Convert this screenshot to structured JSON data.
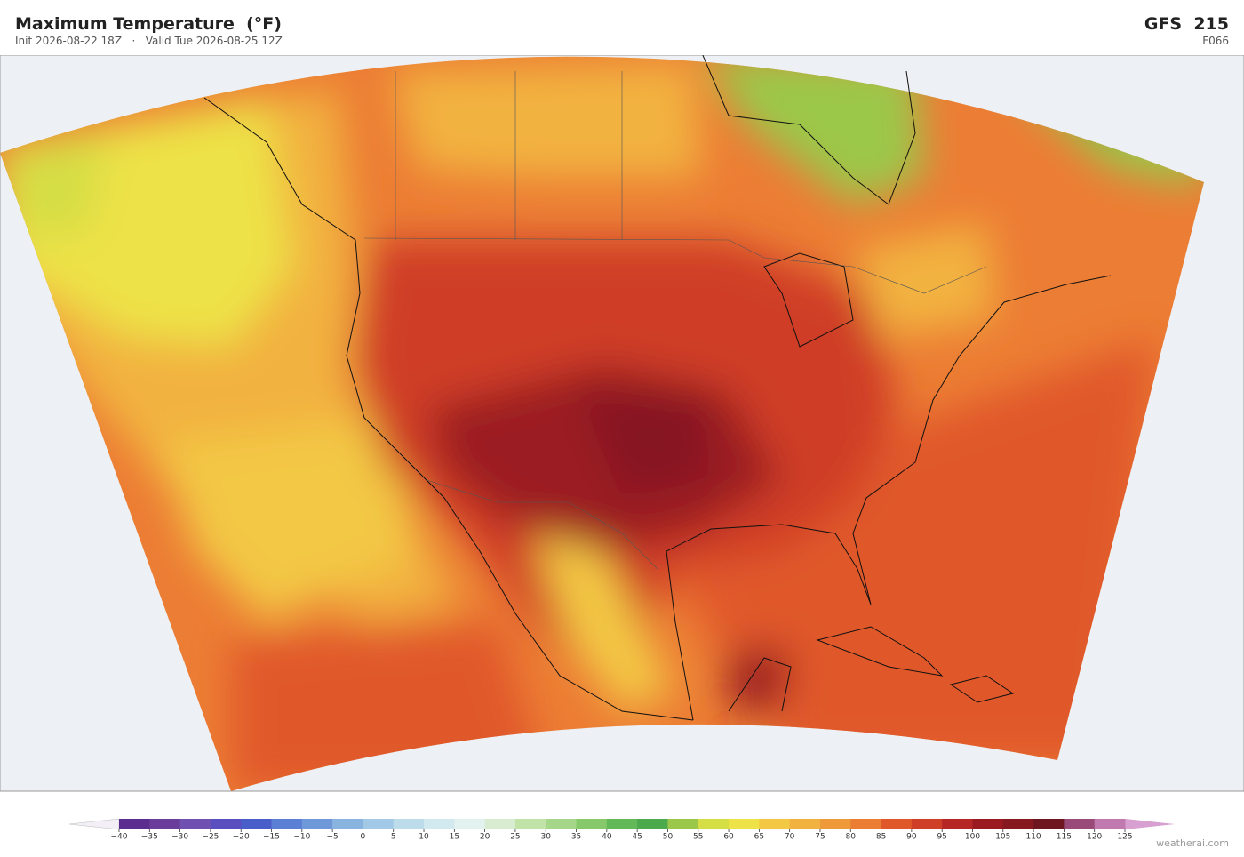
{
  "header": {
    "title": "Maximum Temperature  (°F)",
    "subtitle": "Init 2026-08-22 18Z   ·   Valid Tue 2026-08-25 12Z",
    "model": "GFS  215",
    "forecast_hour": "F066"
  },
  "colorbar": {
    "ticks": [
      {
        "value": -40,
        "label": "−40"
      },
      {
        "value": -35,
        "label": "−35"
      },
      {
        "value": -30,
        "label": "−30"
      },
      {
        "value": -25,
        "label": "−25"
      },
      {
        "value": -20,
        "label": "−20"
      },
      {
        "value": -15,
        "label": "−15"
      },
      {
        "value": -10,
        "label": "−10"
      },
      {
        "value": -5,
        "label": "−5"
      },
      0,
      5,
      10,
      15,
      20,
      25,
      30,
      35,
      40,
      45,
      50,
      55,
      60,
      65,
      70,
      75,
      80,
      85,
      90,
      95,
      100,
      105,
      110,
      115,
      120,
      125
    ],
    "colors": [
      "#5b2d8e",
      "#6a3d9a",
      "#7050b0",
      "#5a4fbf",
      "#4a5ec9",
      "#5a7fd4",
      "#6f98da",
      "#8ab4e0",
      "#a3c9e6",
      "#bcdcec",
      "#d3e9f0",
      "#e2f2ee",
      "#d8ecd0",
      "#c2e3a8",
      "#a6d68a",
      "#86c86a",
      "#63b957",
      "#4daa4c",
      "#9bc84a",
      "#d5de45",
      "#ede247",
      "#f3c844",
      "#f2b23f",
      "#ef9a3a",
      "#ec7d34",
      "#e0582a",
      "#cf3e26",
      "#b52624",
      "#9b1a21",
      "#861820",
      "#6e1620",
      "#9a4a78",
      "#c07ab0"
    ],
    "under_color": "#f3eff6",
    "over_color": "#d8a0d0"
  },
  "credit": "weatherai.com"
}
